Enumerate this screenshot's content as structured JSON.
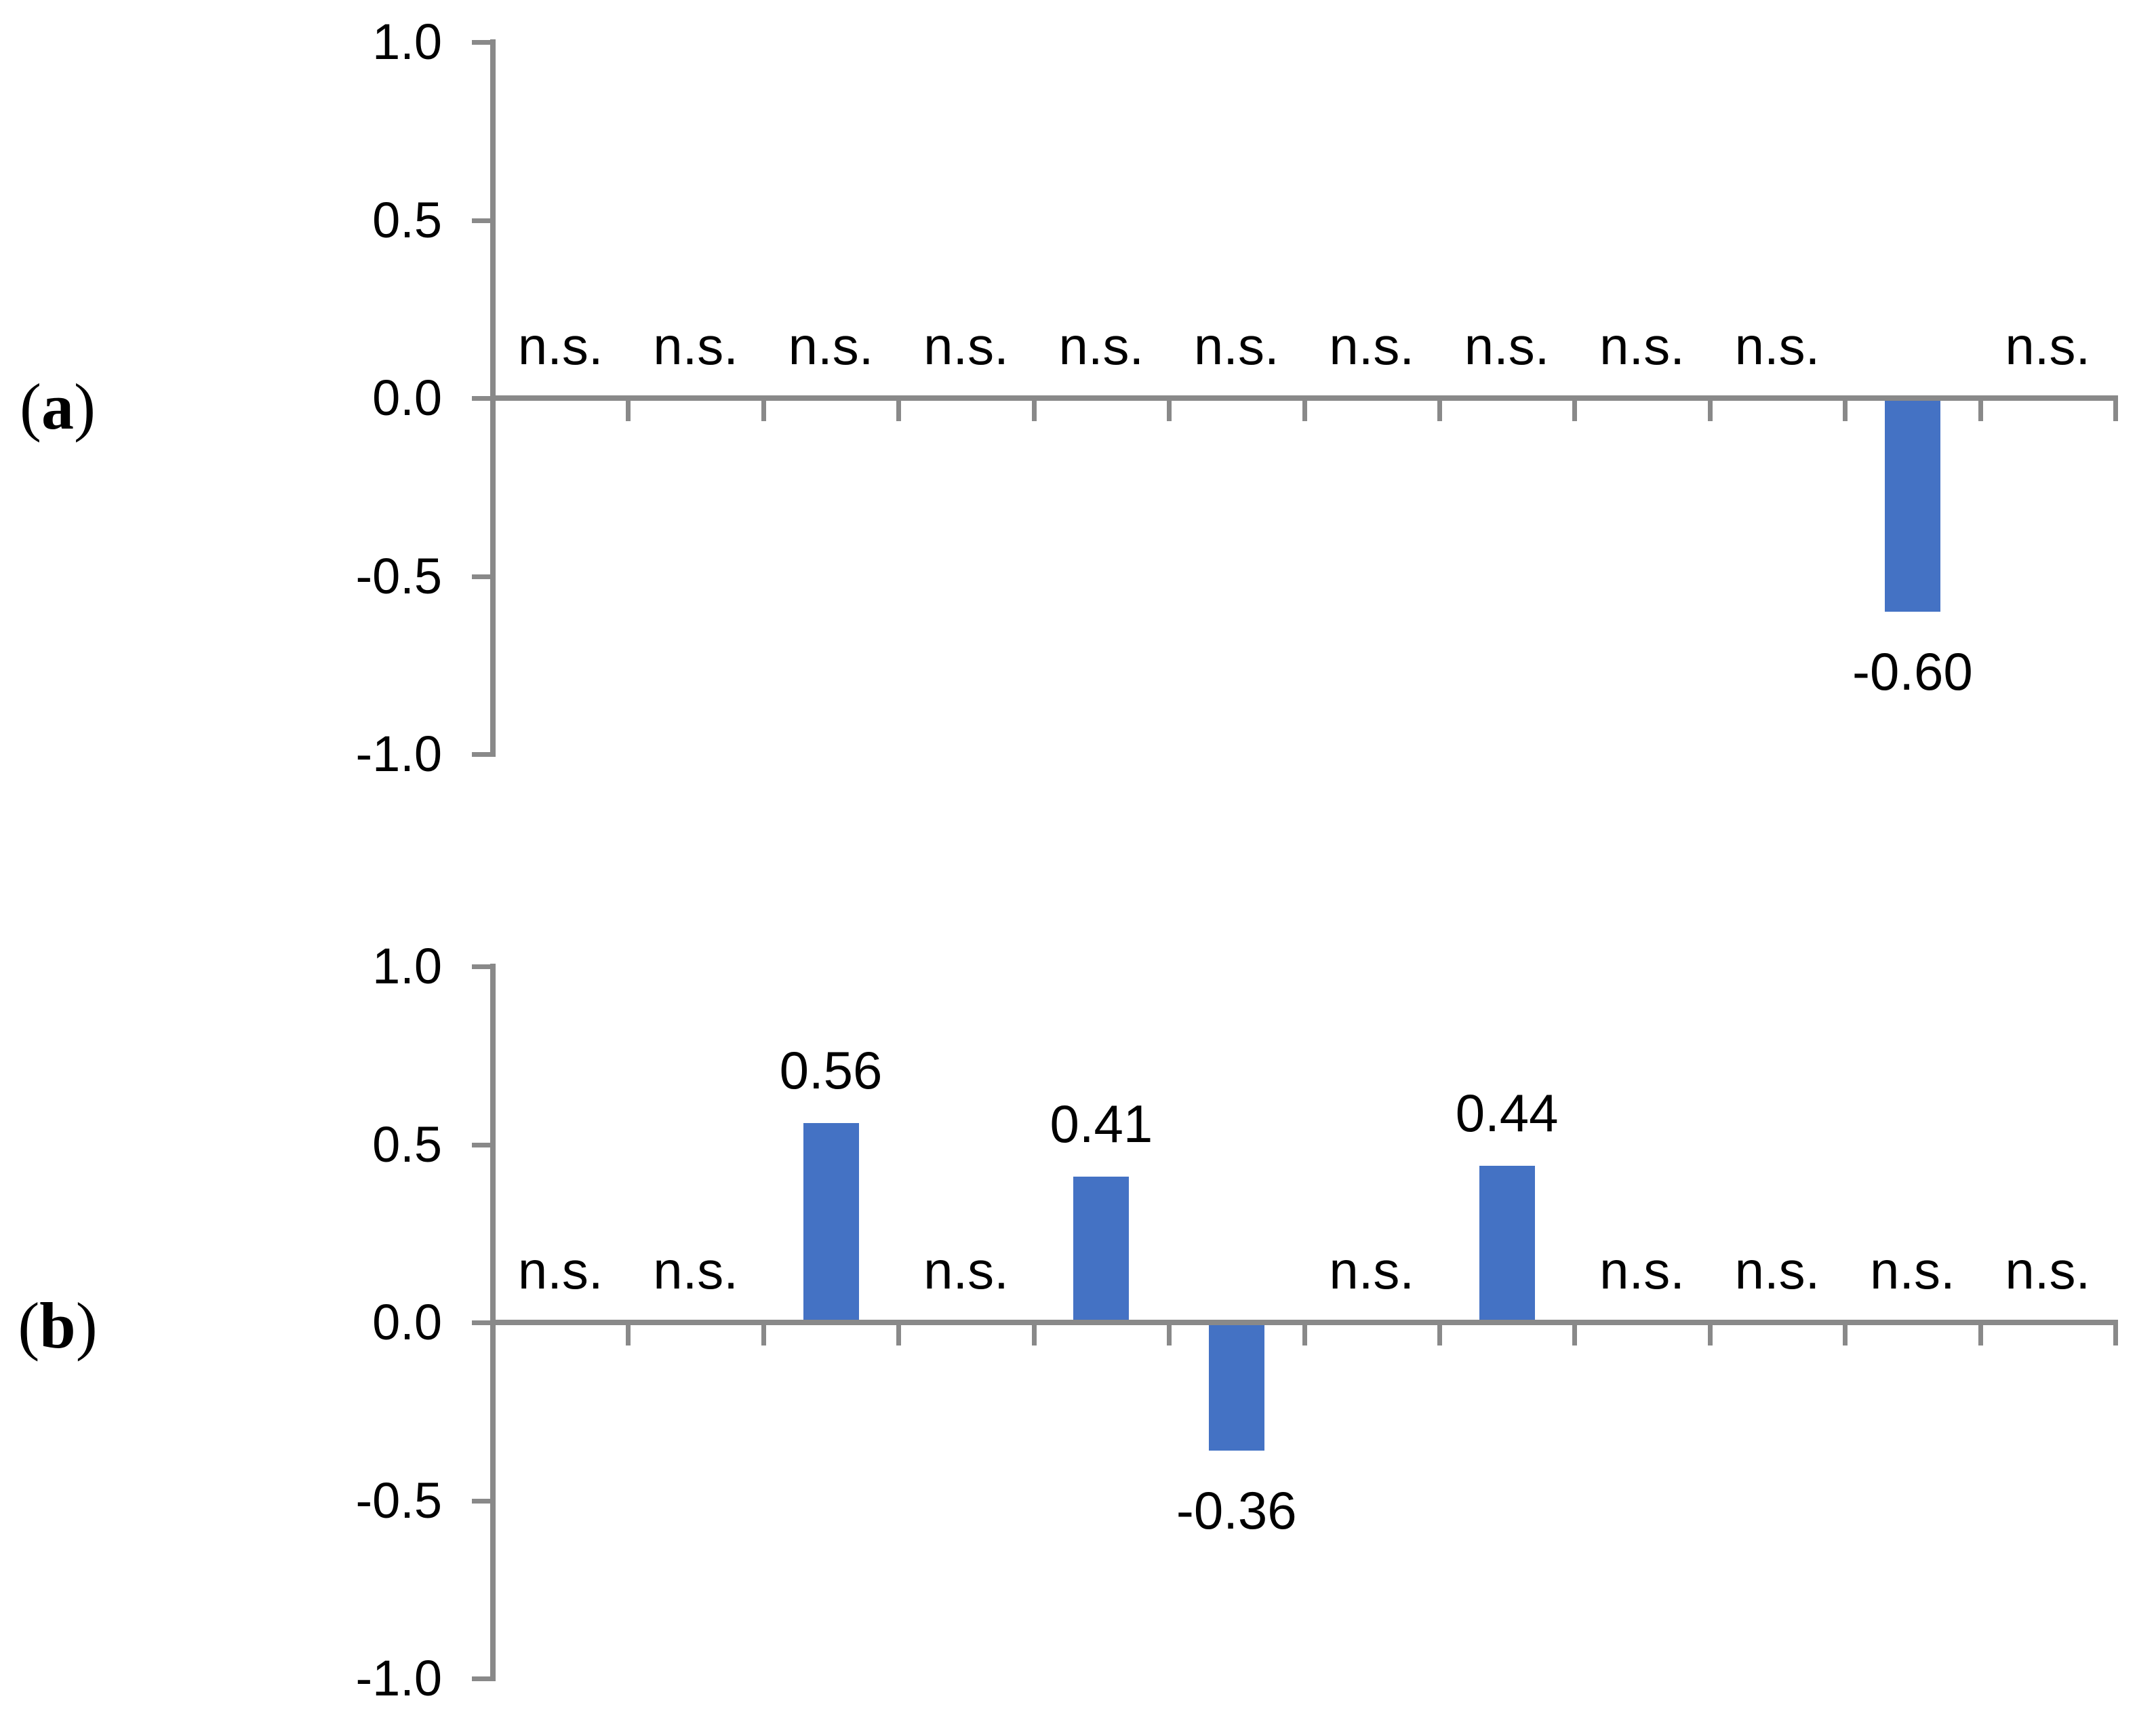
{
  "figure": {
    "background": "#FFFFFF"
  },
  "colors": {
    "bar": "#4472C4",
    "axis": "#898989",
    "text": "#000000"
  },
  "panels": [
    {
      "id": "a",
      "label_open": "(",
      "label_letter": "a",
      "label_close": ")"
    },
    {
      "id": "b",
      "label_open": "(",
      "label_letter": "b",
      "label_close": ")"
    }
  ],
  "chart_data": [
    {
      "type": "bar",
      "panel": "a",
      "n_categories": 12,
      "x": [
        1,
        2,
        3,
        4,
        5,
        6,
        7,
        8,
        9,
        10,
        11,
        12
      ],
      "values": [
        null,
        null,
        null,
        null,
        null,
        null,
        null,
        null,
        null,
        null,
        -0.6,
        null
      ],
      "point_labels": [
        "n.s.",
        "n.s.",
        "n.s.",
        "n.s.",
        "n.s.",
        "n.s.",
        "n.s.",
        "n.s.",
        "n.s.",
        "n.s.",
        "-0.60",
        "n.s."
      ],
      "ylim": [
        -1.0,
        1.0
      ],
      "yticks": [
        1.0,
        0.5,
        0.0,
        -0.5,
        -1.0
      ],
      "ytick_labels": [
        "1.0",
        "0.5",
        "0.0",
        "-0.5",
        "-1.0"
      ],
      "xtick_labels_shown": false,
      "grid": false,
      "legend": false,
      "bar_color": "#4472C4"
    },
    {
      "type": "bar",
      "panel": "b",
      "n_categories": 12,
      "x": [
        1,
        2,
        3,
        4,
        5,
        6,
        7,
        8,
        9,
        10,
        11,
        12
      ],
      "values": [
        null,
        null,
        0.56,
        null,
        0.41,
        -0.36,
        null,
        0.44,
        null,
        null,
        null,
        null
      ],
      "point_labels": [
        "n.s.",
        "n.s.",
        "0.56",
        "n.s.",
        "0.41",
        "-0.36",
        "n.s.",
        "0.44",
        "n.s.",
        "n.s.",
        "n.s.",
        "n.s."
      ],
      "ylim": [
        -1.0,
        1.0
      ],
      "yticks": [
        1.0,
        0.5,
        0.0,
        -0.5,
        -1.0
      ],
      "ytick_labels": [
        "1.0",
        "0.5",
        "0.0",
        "-0.5",
        "-1.0"
      ],
      "xtick_labels_shown": false,
      "grid": false,
      "legend": false,
      "bar_color": "#4472C4"
    }
  ]
}
